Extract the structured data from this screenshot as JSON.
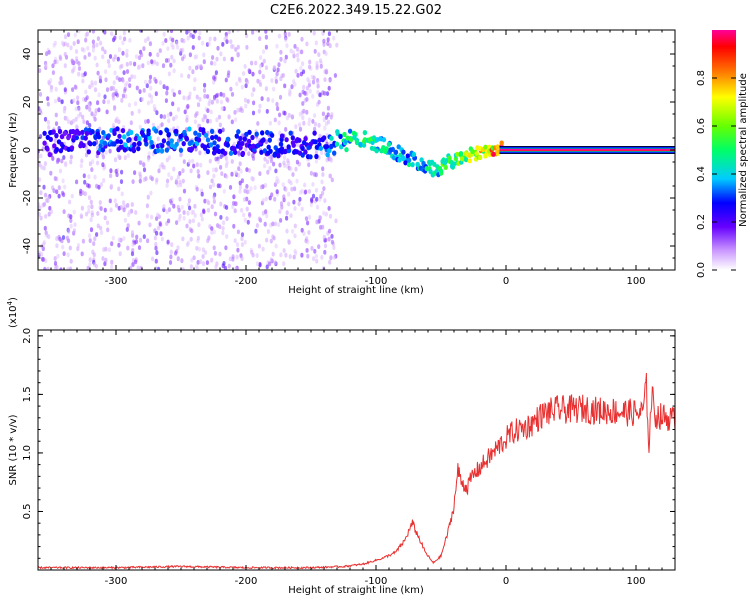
{
  "title": "C2E6.2022.349.15.22.G02",
  "colors": {
    "snr_line": "#e83030",
    "axis": "#000000"
  },
  "chart_data": [
    {
      "type": "heatmap",
      "xlabel": "Height of straight line (km)",
      "ylabel": "Frequency (Hz)",
      "xlim": [
        -360,
        130
      ],
      "ylim": [
        -50,
        50
      ],
      "x_ticks": [
        -300,
        -200,
        -100,
        0,
        100
      ],
      "x_tick_labels": [
        "-300",
        "-200",
        "-100",
        "0",
        "100"
      ],
      "y_ticks": [
        -40,
        -20,
        0,
        20,
        40
      ],
      "y_tick_labels": [
        "-40",
        "-20",
        "0",
        "20",
        "40"
      ],
      "colorbar": {
        "label": "Normalized spectral amplitude",
        "range": [
          0.0,
          1.0
        ],
        "ticks": [
          0.0,
          0.2,
          0.4,
          0.6,
          0.8
        ],
        "tick_labels": [
          "0.0",
          "0.2",
          "0.4",
          "0.6",
          "0.8"
        ],
        "colormap": "rainbow (white-violet-blue-cyan-green-yellow-red-magenta)"
      },
      "features": [
        {
          "name": "noise field",
          "x_range": [
            -360,
            -130
          ],
          "y_range": [
            -50,
            50
          ],
          "amplitude": 0.15
        },
        {
          "name": "signal band",
          "x": [
            -350,
            -300,
            -250,
            -200,
            -150,
            -130,
            -110,
            -90,
            -70,
            -55,
            -40,
            -25,
            -10,
            0,
            50,
            100,
            130
          ],
          "y": [
            3,
            4,
            4,
            3,
            2,
            3,
            5,
            0,
            -5,
            -8,
            -4,
            -1,
            0,
            0,
            0,
            0,
            0
          ],
          "amplitude": [
            0.25,
            0.35,
            0.35,
            0.3,
            0.3,
            0.45,
            0.55,
            0.45,
            0.45,
            0.5,
            0.6,
            0.75,
            0.9,
            1.0,
            1.0,
            1.0,
            1.0
          ]
        }
      ]
    },
    {
      "type": "line",
      "xlabel": "Height of straight line (km)",
      "ylabel": "SNR (10 * v/v)",
      "y_scale_label": "(x10",
      "y_scale_exp": "4",
      "y_scale_close": ")",
      "xlim": [
        -360,
        130
      ],
      "ylim": [
        0,
        2.05
      ],
      "x_ticks": [
        -300,
        -200,
        -100,
        0,
        100
      ],
      "x_tick_labels": [
        "-300",
        "-200",
        "-100",
        "0",
        "100"
      ],
      "y_ticks": [
        0.5,
        1.0,
        1.5,
        2.0
      ],
      "y_tick_labels": [
        "0.5",
        "1.0",
        "1.5",
        "2.0"
      ],
      "series": [
        {
          "x": [
            -360,
            -300,
            -250,
            -200,
            -150,
            -125,
            -110,
            -95,
            -85,
            -78,
            -72,
            -68,
            -62,
            -56,
            -50,
            -44,
            -40,
            -37,
            -34,
            -30,
            -26,
            -22,
            -18,
            -14,
            -10,
            -6,
            -2,
            2,
            6,
            10,
            15,
            20,
            25,
            30,
            40,
            50,
            60,
            70,
            80,
            90,
            100,
            105,
            108,
            110,
            112,
            115,
            120,
            125,
            130
          ],
          "y": [
            0.02,
            0.02,
            0.03,
            0.02,
            0.02,
            0.03,
            0.05,
            0.1,
            0.15,
            0.25,
            0.4,
            0.3,
            0.15,
            0.06,
            0.12,
            0.35,
            0.55,
            0.85,
            0.75,
            0.7,
            0.8,
            0.85,
            0.9,
            0.95,
            1.0,
            1.05,
            1.1,
            1.15,
            1.18,
            1.2,
            1.22,
            1.25,
            1.3,
            1.34,
            1.37,
            1.37,
            1.38,
            1.36,
            1.36,
            1.35,
            1.34,
            1.34,
            1.55,
            1.05,
            1.5,
            1.32,
            1.31,
            1.3,
            1.28
          ]
        }
      ]
    }
  ]
}
